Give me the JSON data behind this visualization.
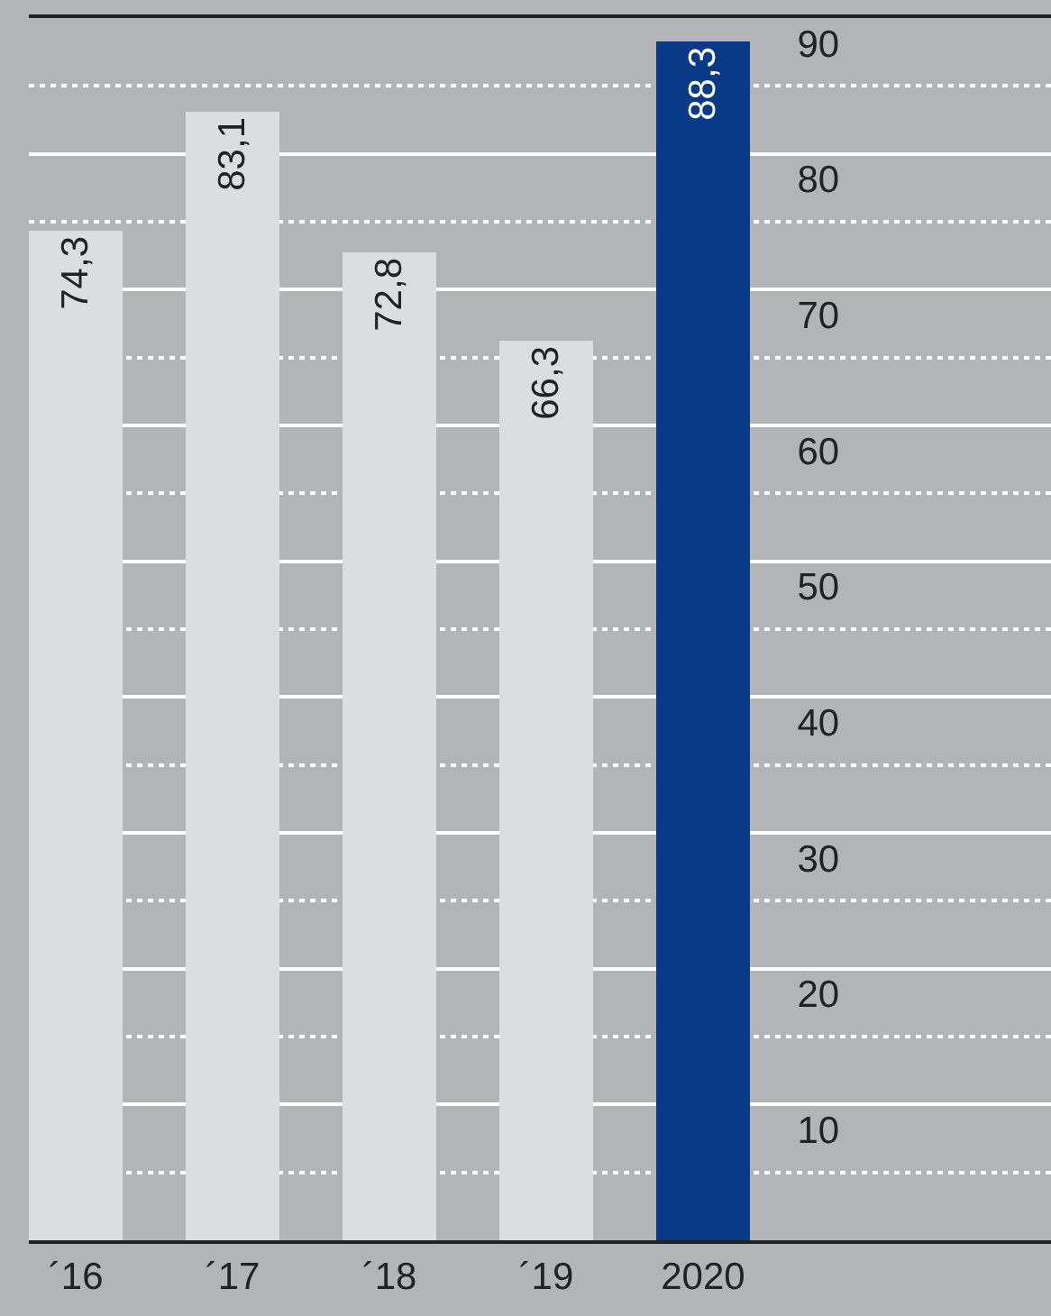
{
  "chart_data": {
    "type": "bar",
    "categories": [
      "´16",
      "´17",
      "´18",
      "´19",
      "2020"
    ],
    "values": [
      74.3,
      83.1,
      72.8,
      66.3,
      88.3
    ],
    "value_labels": [
      "74,3",
      "83,1",
      "72,8",
      "66,3",
      "88,3"
    ],
    "colors": [
      "#dcdddf",
      "#dcdddf",
      "#dcdddf",
      "#dcdddf",
      "#083a87"
    ],
    "ylim": [
      0,
      90
    ],
    "yticks": [
      {
        "value": 5,
        "label": null
      },
      10,
      {
        "value": 15,
        "label": null
      },
      20,
      {
        "value": 25,
        "label": null
      },
      30,
      {
        "value": 35,
        "label": null
      },
      40,
      {
        "value": 45,
        "label": null
      },
      50,
      {
        "value": 55,
        "label": null
      },
      60,
      {
        "value": 65,
        "label": null
      },
      70,
      {
        "value": 75,
        "label": null
      },
      80,
      {
        "value": 85,
        "label": null
      },
      90
    ],
    "grid": "y"
  }
}
